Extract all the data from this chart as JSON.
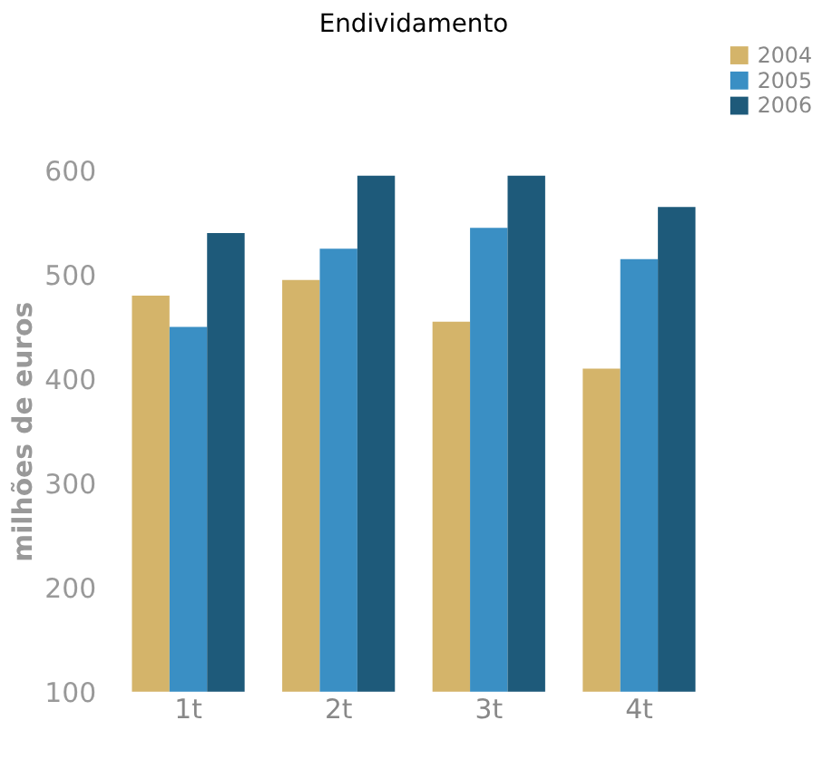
{
  "chart_data": {
    "type": "bar",
    "title": "Endividamento",
    "ylabel": "milhões de euros",
    "categories": [
      "1t",
      "2t",
      "3t",
      "4t"
    ],
    "series": [
      {
        "name": "2004",
        "color": "#d4b46a",
        "values": [
          480,
          495,
          455,
          410
        ]
      },
      {
        "name": "2005",
        "color": "#3a8fc4",
        "values": [
          450,
          525,
          545,
          515
        ]
      },
      {
        "name": "2006",
        "color": "#1e5a7a",
        "values": [
          540,
          595,
          595,
          565
        ]
      }
    ],
    "ylim": [
      100,
      600
    ],
    "yticks": [
      100,
      200,
      300,
      400,
      500,
      600
    ],
    "grid": false,
    "legend": "top right"
  }
}
